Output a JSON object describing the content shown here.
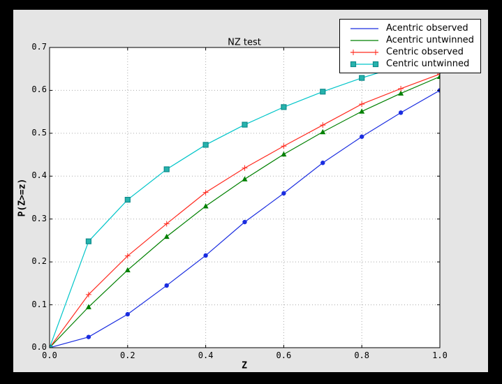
{
  "colors": {
    "window_background": "#000000",
    "figure_background": "#e5e5e5",
    "plot_background": "#ffffff",
    "gridline_color": "#aaaaaa",
    "axis_color": "#000000"
  },
  "chart_data": {
    "type": "line",
    "title": "NZ test",
    "xlabel": "Z",
    "ylabel": "P(Z>=z)",
    "xlim": [
      0.0,
      1.0
    ],
    "ylim": [
      0.0,
      0.7
    ],
    "grid": true,
    "legend_position": "upper right",
    "x_ticks": [
      "0.0",
      "0.2",
      "0.4",
      "0.6",
      "0.8",
      "1.0"
    ],
    "y_ticks": [
      "0.0",
      "0.1",
      "0.2",
      "0.3",
      "0.4",
      "0.5",
      "0.6",
      "0.7"
    ],
    "x": [
      0.0,
      0.1,
      0.2,
      0.3,
      0.4,
      0.5,
      0.6,
      0.7,
      0.8,
      0.9,
      1.0
    ],
    "series": [
      {
        "name": "Acentric observed",
        "color": "#1a2de0",
        "marker": "circle",
        "legend_markers": false,
        "values": [
          0.0,
          0.025,
          0.078,
          0.145,
          0.215,
          0.293,
          0.36,
          0.431,
          0.492,
          0.548,
          0.6
        ]
      },
      {
        "name": "Acentric untwinned",
        "color": "#008000",
        "marker": "triangle",
        "legend_markers": false,
        "values": [
          0.0,
          0.095,
          0.181,
          0.259,
          0.33,
          0.393,
          0.451,
          0.503,
          0.551,
          0.593,
          0.632
        ]
      },
      {
        "name": "Centric observed",
        "color": "#ff2a1f",
        "marker": "plus",
        "legend_markers": true,
        "values": [
          0.0,
          0.124,
          0.214,
          0.289,
          0.362,
          0.419,
          0.47,
          0.519,
          0.568,
          0.604,
          0.638
        ]
      },
      {
        "name": "Centric untwinned",
        "color": "#00c5c9",
        "marker": "square",
        "marker_fill": "#26b3ad",
        "marker_edge": "#0e8a8a",
        "legend_markers": true,
        "values": [
          0.0,
          0.248,
          0.345,
          0.416,
          0.473,
          0.52,
          0.561,
          0.597,
          0.629,
          0.657,
          0.683
        ]
      }
    ]
  }
}
